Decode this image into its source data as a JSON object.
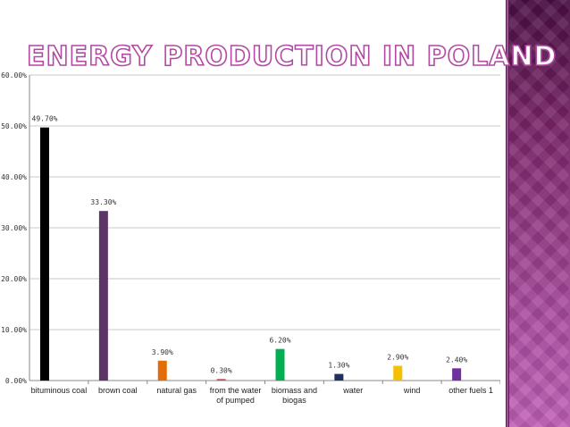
{
  "slide": {
    "title": "ENERGY PRODUCTION IN POLAND",
    "accent_color": "#b24aa4",
    "side_panel_color": "#8e2f7e"
  },
  "chart_data": {
    "type": "bar",
    "title": "ENERGY PRODUCTION IN POLAND",
    "xlabel": "",
    "ylabel": "",
    "ylim": [
      0,
      60
    ],
    "yticks": [
      "0.00%",
      "10.00%",
      "20.00%",
      "30.00%",
      "40.00%",
      "50.00%",
      "60.00%"
    ],
    "grid": true,
    "legend": "none",
    "categories": [
      [
        "bituminous coal"
      ],
      [
        "brown coal"
      ],
      [
        "natural gas"
      ],
      [
        "from the water",
        "of pumped"
      ],
      [
        "biomass and",
        "biogas"
      ],
      [
        "water"
      ],
      [
        "wind"
      ],
      [
        "other fuels 1"
      ]
    ],
    "values": [
      49.7,
      33.3,
      3.9,
      0.3,
      6.2,
      1.3,
      2.9,
      2.4
    ],
    "data_labels": [
      "49.70%",
      "33.30%",
      "3.90%",
      "0.30%",
      "6.20%",
      "1.30%",
      "2.90%",
      "2.40%"
    ],
    "colors": [
      "#000000",
      "#5c3566",
      "#e36c0a",
      "#c0504d",
      "#00b050",
      "#1f2f5f",
      "#f5c000",
      "#7030a0"
    ]
  }
}
